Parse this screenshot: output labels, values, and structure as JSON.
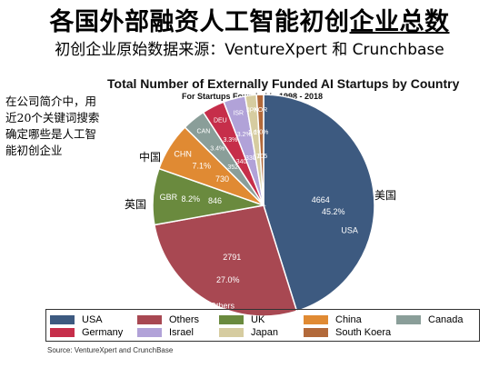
{
  "header": {
    "title_part1": "各国外部融资人工智能初创",
    "title_part2": "企业总数",
    "subtitle": "初创企业原始数据来源：VentureXpert 和 Crunchbase"
  },
  "note": {
    "line1": "在公司简介中，用",
    "line2": "近20个关键词搜索",
    "line3": "确定哪些是人工智",
    "line4": "能初创企业"
  },
  "side_labels": {
    "china": "中国",
    "uk": "英国",
    "usa": "美国"
  },
  "source": "Source: VentureXpert and CrunchBase",
  "chart_data": {
    "type": "pie",
    "title": "Total Number of Externally Funded AI Startups by Country",
    "subtitle": "For Startups Founded in 1998 - 2018",
    "slices": [
      {
        "code": "USA",
        "name": "USA",
        "value": 4664,
        "percent": "45.2%",
        "color": "#3d5a80"
      },
      {
        "code": "Others",
        "name": "Others",
        "value": 2791,
        "percent": "27.0%",
        "color": "#a84852"
      },
      {
        "code": "GBR",
        "name": "UK",
        "value": 846,
        "percent": "8.2%",
        "color": "#6a8a3e"
      },
      {
        "code": "CHN",
        "name": "China",
        "value": 730,
        "percent": "7.1%",
        "color": "#e08a33"
      },
      {
        "code": "CAN",
        "name": "Canada",
        "value": 352,
        "percent": "3.4%",
        "color": "#8a9e99"
      },
      {
        "code": "DEU",
        "name": "Germany",
        "value": 340,
        "percent": "3.3%",
        "color": "#c62e4a"
      },
      {
        "code": "ISR",
        "name": "Israel",
        "value": 330,
        "percent": "3.2%",
        "color": "#b1a2d8"
      },
      {
        "code": "JPN",
        "name": "Japan",
        "value": 170,
        "percent": "1.6%",
        "color": "#d6cca0"
      },
      {
        "code": "KOR",
        "name": "South Koera",
        "value": 105,
        "percent": "1.0%",
        "color": "#b2693a"
      }
    ],
    "legend": [
      {
        "name": "USA",
        "color": "#3d5a80"
      },
      {
        "name": "Others",
        "color": "#a84852"
      },
      {
        "name": "UK",
        "color": "#6a8a3e"
      },
      {
        "name": "China",
        "color": "#e08a33"
      },
      {
        "name": "Canada",
        "color": "#8a9e99"
      },
      {
        "name": "Germany",
        "color": "#c62e4a"
      },
      {
        "name": "Israel",
        "color": "#b1a2d8"
      },
      {
        "name": "Japan",
        "color": "#d6cca0"
      },
      {
        "name": "South Koera",
        "color": "#b2693a"
      }
    ]
  }
}
